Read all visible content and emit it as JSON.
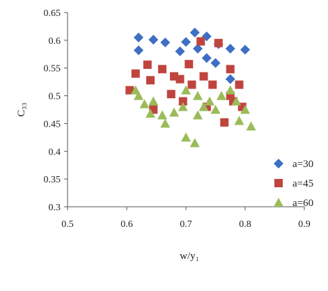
{
  "chart_data": {
    "type": "scatter",
    "xlabel": "w/y₁",
    "ylabel": "C₃₃",
    "xlim": [
      0.5,
      0.9
    ],
    "ylim": [
      0.3,
      0.65
    ],
    "xticks": [
      "0.5",
      "0.6",
      "0.7",
      "0.8",
      "0.9"
    ],
    "yticks": [
      "0.3",
      "0.35",
      "0.4",
      "0.45",
      "0.5",
      "0.55",
      "0.6",
      "0.65"
    ],
    "grid": false,
    "legend_position": "right",
    "series": [
      {
        "name": "a=30",
        "marker": "diamond",
        "color": "#3d6fc4",
        "points": [
          [
            0.62,
            0.605
          ],
          [
            0.62,
            0.582
          ],
          [
            0.645,
            0.601
          ],
          [
            0.665,
            0.596
          ],
          [
            0.69,
            0.58
          ],
          [
            0.7,
            0.597
          ],
          [
            0.715,
            0.614
          ],
          [
            0.72,
            0.585
          ],
          [
            0.735,
            0.607
          ],
          [
            0.735,
            0.568
          ],
          [
            0.75,
            0.559
          ],
          [
            0.755,
            0.593
          ],
          [
            0.775,
            0.585
          ],
          [
            0.8,
            0.583
          ],
          [
            0.775,
            0.53
          ]
        ]
      },
      {
        "name": "a=45",
        "marker": "square",
        "color": "#c0443e",
        "points": [
          [
            0.605,
            0.51
          ],
          [
            0.615,
            0.54
          ],
          [
            0.635,
            0.556
          ],
          [
            0.64,
            0.528
          ],
          [
            0.645,
            0.475
          ],
          [
            0.66,
            0.548
          ],
          [
            0.675,
            0.503
          ],
          [
            0.68,
            0.535
          ],
          [
            0.69,
            0.53
          ],
          [
            0.695,
            0.49
          ],
          [
            0.705,
            0.557
          ],
          [
            0.71,
            0.52
          ],
          [
            0.725,
            0.598
          ],
          [
            0.73,
            0.535
          ],
          [
            0.735,
            0.48
          ],
          [
            0.745,
            0.52
          ],
          [
            0.755,
            0.595
          ],
          [
            0.765,
            0.452
          ],
          [
            0.775,
            0.548
          ],
          [
            0.775,
            0.5
          ],
          [
            0.78,
            0.49
          ],
          [
            0.79,
            0.52
          ],
          [
            0.795,
            0.48
          ]
        ]
      },
      {
        "name": "a=60",
        "marker": "triangle",
        "color": "#9bbb59",
        "points": [
          [
            0.615,
            0.51
          ],
          [
            0.62,
            0.5
          ],
          [
            0.63,
            0.485
          ],
          [
            0.64,
            0.468
          ],
          [
            0.645,
            0.49
          ],
          [
            0.66,
            0.465
          ],
          [
            0.665,
            0.45
          ],
          [
            0.68,
            0.47
          ],
          [
            0.695,
            0.48
          ],
          [
            0.7,
            0.51
          ],
          [
            0.7,
            0.425
          ],
          [
            0.715,
            0.415
          ],
          [
            0.72,
            0.5
          ],
          [
            0.72,
            0.465
          ],
          [
            0.73,
            0.48
          ],
          [
            0.74,
            0.49
          ],
          [
            0.75,
            0.475
          ],
          [
            0.76,
            0.5
          ],
          [
            0.775,
            0.51
          ],
          [
            0.785,
            0.49
          ],
          [
            0.79,
            0.455
          ],
          [
            0.8,
            0.475
          ],
          [
            0.81,
            0.445
          ]
        ]
      }
    ]
  }
}
